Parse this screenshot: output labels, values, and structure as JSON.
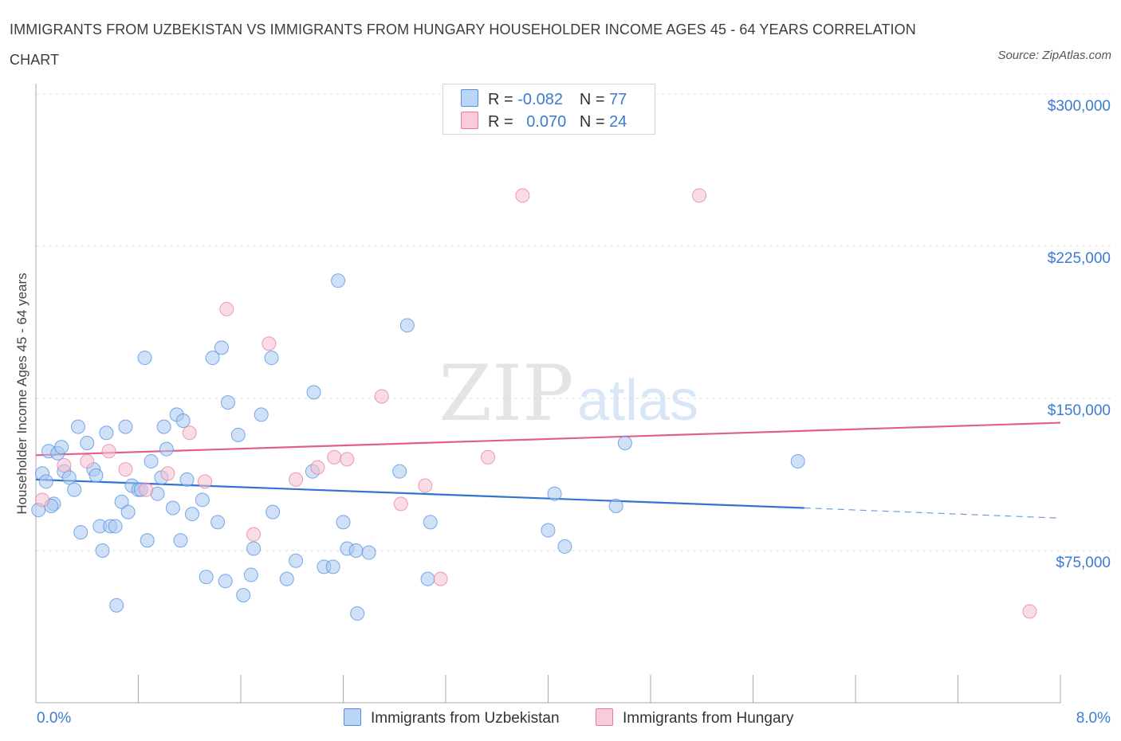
{
  "title": "IMMIGRANTS FROM UZBEKISTAN VS IMMIGRANTS FROM HUNGARY HOUSEHOLDER INCOME AGES 45 - 64 YEARS CORRELATION CHART",
  "source": "Source: ZipAtlas.com",
  "watermark": {
    "zip": "ZIP",
    "atlas": "atlas"
  },
  "legend": {
    "r_label": "R =",
    "n_label": "N =",
    "rows": [
      {
        "r": "-0.082",
        "n": "77",
        "color": "#4d8fe0"
      },
      {
        "r": "0.070",
        "n": "24",
        "color": "#e87aa0"
      }
    ]
  },
  "chart_data": {
    "type": "scatter",
    "title": "IMMIGRANTS FROM UZBEKISTAN VS IMMIGRANTS FROM HUNGARY HOUSEHOLDER INCOME AGES 45 - 64 YEARS CORRELATION CHART",
    "xlabel": "",
    "ylabel": "Householder Income Ages 45 - 64 years",
    "xlim": [
      0,
      8
    ],
    "ylim": [
      0,
      310000
    ],
    "x_ticks": [
      "0.0%",
      "8.0%"
    ],
    "y_ticks": [
      {
        "value": 75000,
        "label": "$75,000"
      },
      {
        "value": 150000,
        "label": "$150,000"
      },
      {
        "value": 225000,
        "label": "$225,000"
      },
      {
        "value": 300000,
        "label": "$300,000"
      }
    ],
    "grid": true,
    "legend_position": "bottom",
    "series": [
      {
        "name": "Immigrants from Uzbekistan",
        "color": "#4d8fe0",
        "fill": "#a9c8f0",
        "trend": {
          "x0": 0,
          "y0": 110000,
          "x1": 6.0,
          "y1": 96000,
          "x_dash_end": 8.0,
          "y_dash_end": 91000
        },
        "points": [
          [
            0.05,
            113000
          ],
          [
            0.08,
            109000
          ],
          [
            0.1,
            124000
          ],
          [
            0.14,
            98000
          ],
          [
            0.17,
            123000
          ],
          [
            0.2,
            126000
          ],
          [
            0.22,
            114000
          ],
          [
            0.26,
            111000
          ],
          [
            0.3,
            105000
          ],
          [
            0.33,
            136000
          ],
          [
            0.35,
            84000
          ],
          [
            0.4,
            128000
          ],
          [
            0.45,
            115000
          ],
          [
            0.47,
            112000
          ],
          [
            0.5,
            87000
          ],
          [
            0.52,
            75000
          ],
          [
            0.55,
            133000
          ],
          [
            0.58,
            87000
          ],
          [
            0.62,
            87000
          ],
          [
            0.63,
            48000
          ],
          [
            0.67,
            99000
          ],
          [
            0.7,
            136000
          ],
          [
            0.72,
            94000
          ],
          [
            0.75,
            107000
          ],
          [
            0.8,
            105000
          ],
          [
            0.82,
            105000
          ],
          [
            0.85,
            170000
          ],
          [
            0.87,
            80000
          ],
          [
            0.9,
            119000
          ],
          [
            0.95,
            103000
          ],
          [
            0.98,
            111000
          ],
          [
            1.0,
            136000
          ],
          [
            1.02,
            125000
          ],
          [
            1.07,
            96000
          ],
          [
            1.1,
            142000
          ],
          [
            1.13,
            80000
          ],
          [
            1.15,
            139000
          ],
          [
            1.18,
            110000
          ],
          [
            1.22,
            93000
          ],
          [
            1.3,
            100000
          ],
          [
            1.33,
            62000
          ],
          [
            1.38,
            170000
          ],
          [
            1.42,
            89000
          ],
          [
            1.45,
            175000
          ],
          [
            1.48,
            60000
          ],
          [
            1.5,
            148000
          ],
          [
            1.58,
            132000
          ],
          [
            1.62,
            53000
          ],
          [
            1.68,
            63000
          ],
          [
            1.7,
            76000
          ],
          [
            1.76,
            142000
          ],
          [
            1.84,
            170000
          ],
          [
            1.85,
            94000
          ],
          [
            1.96,
            61000
          ],
          [
            2.03,
            70000
          ],
          [
            2.16,
            114000
          ],
          [
            2.17,
            153000
          ],
          [
            2.25,
            67000
          ],
          [
            2.32,
            67000
          ],
          [
            2.36,
            208000
          ],
          [
            2.4,
            89000
          ],
          [
            2.43,
            76000
          ],
          [
            2.5,
            75000
          ],
          [
            2.51,
            44000
          ],
          [
            2.6,
            74000
          ],
          [
            2.84,
            114000
          ],
          [
            2.9,
            186000
          ],
          [
            3.06,
            61000
          ],
          [
            3.08,
            89000
          ],
          [
            4.0,
            85000
          ],
          [
            4.05,
            103000
          ],
          [
            4.13,
            77000
          ],
          [
            4.53,
            97000
          ],
          [
            4.6,
            128000
          ],
          [
            5.95,
            119000
          ],
          [
            0.02,
            95000
          ],
          [
            0.12,
            97000
          ]
        ]
      },
      {
        "name": "Immigrants from Hungary",
        "color": "#e87aa0",
        "fill": "#f5bfd2",
        "trend": {
          "x0": 0,
          "y0": 122000,
          "x1": 8.0,
          "y1": 138000
        },
        "points": [
          [
            0.05,
            100000
          ],
          [
            0.22,
            117000
          ],
          [
            0.4,
            119000
          ],
          [
            0.57,
            124000
          ],
          [
            0.7,
            115000
          ],
          [
            0.86,
            105000
          ],
          [
            1.03,
            113000
          ],
          [
            1.2,
            133000
          ],
          [
            1.32,
            109000
          ],
          [
            1.49,
            194000
          ],
          [
            1.7,
            83000
          ],
          [
            1.82,
            177000
          ],
          [
            2.03,
            110000
          ],
          [
            2.2,
            116000
          ],
          [
            2.33,
            121000
          ],
          [
            2.43,
            120000
          ],
          [
            2.7,
            151000
          ],
          [
            2.85,
            98000
          ],
          [
            3.04,
            107000
          ],
          [
            3.16,
            61000
          ],
          [
            3.53,
            121000
          ],
          [
            3.8,
            250000
          ],
          [
            5.18,
            250000
          ],
          [
            7.76,
            45000
          ]
        ]
      }
    ]
  },
  "bottom_legend": {
    "items": [
      {
        "label": "Immigrants from Uzbekistan"
      },
      {
        "label": "Immigrants from Hungary"
      }
    ]
  }
}
